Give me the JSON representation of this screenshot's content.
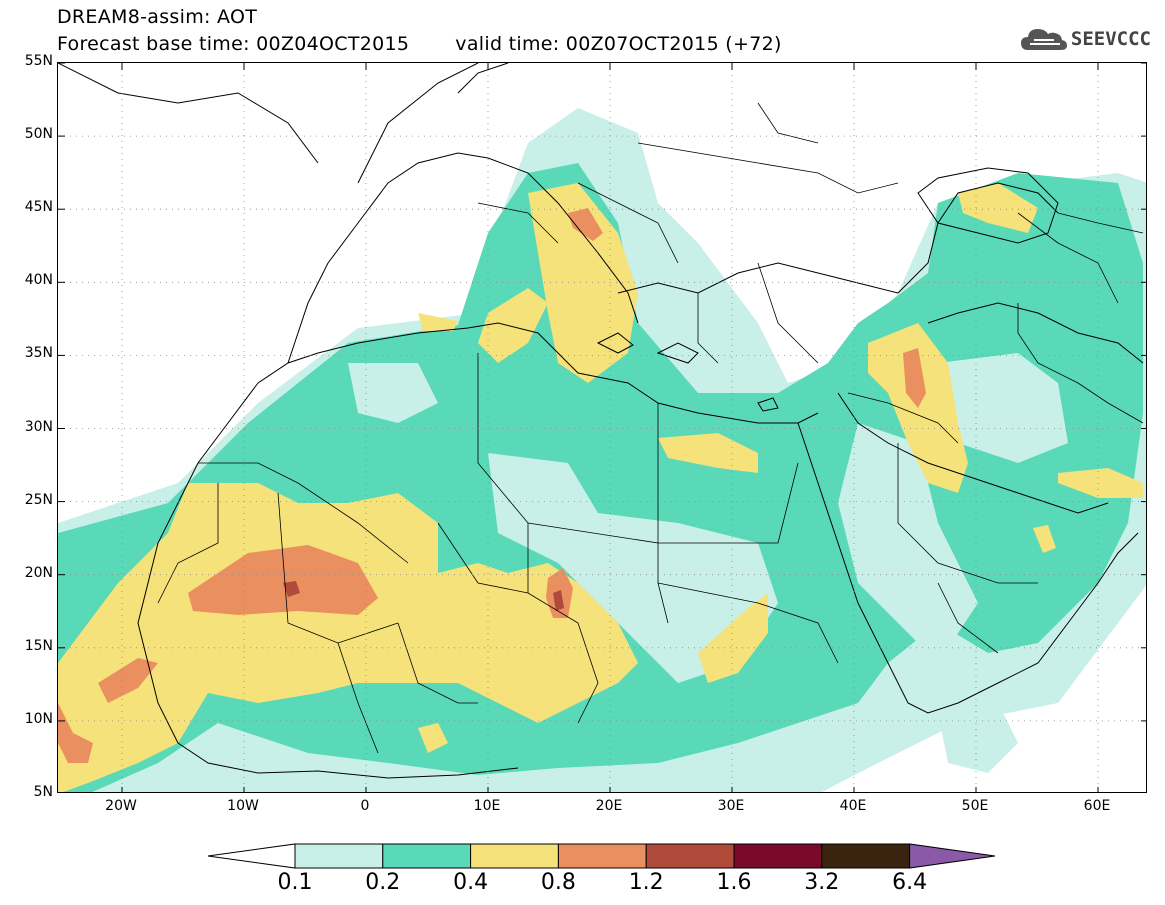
{
  "title": {
    "line1": "DREAM8-assim: AOT",
    "base_time": "Forecast base time: 00Z04OCT2015",
    "valid_time": "valid time: 00Z07OCT2015 (+72)"
  },
  "logo": {
    "text": "SEEVCCC",
    "icon": "cloud-icon"
  },
  "axes": {
    "lat_labels": [
      "55N",
      "50N",
      "45N",
      "40N",
      "35N",
      "30N",
      "25N",
      "20N",
      "15N",
      "10N",
      "5N"
    ],
    "lon_labels": [
      "20W",
      "10W",
      "0",
      "10E",
      "20E",
      "30E",
      "40E",
      "50E",
      "60E"
    ]
  },
  "colorbar": {
    "labels": [
      "0.1",
      "0.2",
      "0.4",
      "0.8",
      "1.2",
      "1.6",
      "3.2",
      "6.4"
    ],
    "colors": [
      "#c8f0e8",
      "#5ad9b8",
      "#f5e27a",
      "#ea9060",
      "#b04a3a",
      "#7a0a2a",
      "#3a2410",
      "#8a5aa8"
    ]
  },
  "palette": {
    "light": "#c8f0e8",
    "green": "#5ad9b8",
    "yellow": "#f5e27a",
    "orange": "#ea9060",
    "red": "#b04a3a"
  }
}
